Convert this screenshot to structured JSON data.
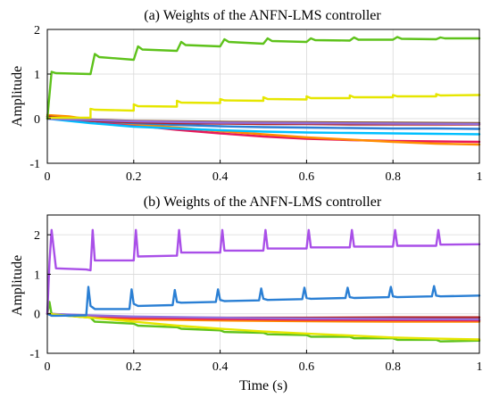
{
  "chart_data": [
    {
      "type": "line",
      "title": "(a) Weights of the ANFN-LMS controller",
      "ylabel": "Amplitude",
      "xlabel": "",
      "xlim": [
        0,
        1
      ],
      "ylim": [
        -1,
        2
      ],
      "xticks": [
        "0",
        "0.2",
        "0.4",
        "0.6",
        "0.8",
        "1"
      ],
      "yticks": [
        "2",
        "1",
        "0",
        "-1"
      ],
      "xtick_values": [
        0,
        0.2,
        0.4,
        0.6,
        0.8,
        1
      ],
      "ytick_values": [
        2,
        1,
        0,
        -1
      ],
      "grid": true,
      "series": [
        {
          "color": "#e8195a",
          "x": [
            0,
            0.05,
            0.1,
            0.2,
            0.3,
            0.4,
            0.5,
            0.6,
            0.7,
            0.8,
            0.9,
            1.0
          ],
          "y": [
            0.05,
            0.02,
            -0.05,
            -0.15,
            -0.25,
            -0.33,
            -0.4,
            -0.45,
            -0.48,
            -0.5,
            -0.51,
            -0.52
          ]
        },
        {
          "color": "#ff8c00",
          "x": [
            0,
            0.05,
            0.1,
            0.2,
            0.3,
            0.4,
            0.5,
            0.6,
            0.7,
            0.8,
            0.9,
            1.0
          ],
          "y": [
            0.08,
            0.05,
            -0.02,
            -0.12,
            -0.2,
            -0.28,
            -0.35,
            -0.42,
            -0.47,
            -0.52,
            -0.56,
            -0.58
          ]
        },
        {
          "color": "#00bfff",
          "x": [
            0,
            0.05,
            0.1,
            0.2,
            0.3,
            0.4,
            0.5,
            0.6,
            0.7,
            0.8,
            0.9,
            1.0
          ],
          "y": [
            0,
            -0.05,
            -0.1,
            -0.18,
            -0.22,
            -0.26,
            -0.29,
            -0.31,
            -0.32,
            -0.33,
            -0.34,
            -0.35
          ]
        },
        {
          "color": "#2a7fd4",
          "x": [
            0,
            0.05,
            0.1,
            0.2,
            0.3,
            0.4,
            0.5,
            0.6,
            0.7,
            0.8,
            0.9,
            1.0
          ],
          "y": [
            0,
            -0.02,
            -0.05,
            -0.1,
            -0.14,
            -0.17,
            -0.19,
            -0.2,
            -0.21,
            -0.22,
            -0.22,
            -0.23
          ]
        },
        {
          "color": "#b22222",
          "x": [
            0,
            0.05,
            0.1,
            0.2,
            0.3,
            0.4,
            0.5,
            0.6,
            0.7,
            0.8,
            0.9,
            1.0
          ],
          "y": [
            0.05,
            0,
            -0.05,
            -0.08,
            -0.1,
            -0.11,
            -0.12,
            -0.12,
            -0.13,
            -0.13,
            -0.13,
            -0.13
          ]
        },
        {
          "color": "#8b5a2b",
          "x": [
            0,
            0.1,
            0.2,
            0.4,
            0.6,
            0.8,
            1.0
          ],
          "y": [
            0.02,
            -0.02,
            -0.05,
            -0.07,
            -0.08,
            -0.09,
            -0.1
          ]
        },
        {
          "color": "#9370db",
          "x": [
            0,
            0.1,
            0.2,
            0.4,
            0.6,
            0.8,
            1.0
          ],
          "y": [
            0,
            -0.03,
            -0.06,
            -0.09,
            -0.1,
            -0.11,
            -0.12
          ]
        },
        {
          "color": "#e6e600",
          "x": [
            0,
            0.01,
            0.02,
            0.1,
            0.1,
            0.11,
            0.2,
            0.2,
            0.21,
            0.3,
            0.3,
            0.31,
            0.4,
            0.4,
            0.41,
            0.5,
            0.5,
            0.51,
            0.6,
            0.6,
            0.61,
            0.7,
            0.7,
            0.71,
            0.8,
            0.8,
            0.81,
            0.9,
            0.9,
            0.91,
            1.0
          ],
          "y": [
            0,
            0.02,
            0.02,
            0.02,
            0.22,
            0.2,
            0.18,
            0.32,
            0.28,
            0.27,
            0.4,
            0.36,
            0.35,
            0.44,
            0.41,
            0.4,
            0.48,
            0.44,
            0.43,
            0.5,
            0.46,
            0.46,
            0.52,
            0.48,
            0.48,
            0.53,
            0.5,
            0.5,
            0.55,
            0.52,
            0.53
          ]
        },
        {
          "color": "#5ec21b",
          "x": [
            0,
            0.01,
            0.02,
            0.1,
            0.11,
            0.12,
            0.2,
            0.21,
            0.22,
            0.3,
            0.31,
            0.32,
            0.4,
            0.41,
            0.42,
            0.5,
            0.51,
            0.52,
            0.6,
            0.61,
            0.62,
            0.7,
            0.71,
            0.72,
            0.8,
            0.81,
            0.82,
            0.9,
            0.91,
            0.92,
            1.0
          ],
          "y": [
            0,
            1.05,
            1.02,
            1.0,
            1.45,
            1.38,
            1.32,
            1.62,
            1.55,
            1.52,
            1.72,
            1.65,
            1.62,
            1.78,
            1.72,
            1.68,
            1.8,
            1.74,
            1.72,
            1.8,
            1.76,
            1.75,
            1.82,
            1.77,
            1.77,
            1.83,
            1.79,
            1.78,
            1.82,
            1.8,
            1.8
          ]
        }
      ]
    },
    {
      "type": "line",
      "title": "(b) Weights of the ANFN-LMS controller",
      "ylabel": "Amplitude",
      "xlabel": "Time (s)",
      "xlim": [
        0,
        1
      ],
      "ylim": [
        -1,
        2.5
      ],
      "xticks": [
        "0",
        "0.2",
        "0.4",
        "0.6",
        "0.8",
        "1"
      ],
      "yticks": [
        "2",
        "1",
        "0",
        "-1"
      ],
      "xtick_values": [
        0,
        0.2,
        0.4,
        0.6,
        0.8,
        1
      ],
      "ytick_values": [
        2,
        1,
        0,
        -1
      ],
      "grid": true,
      "series": [
        {
          "color": "#b22222",
          "x": [
            0,
            0.1,
            0.2,
            0.4,
            0.6,
            0.8,
            1.0
          ],
          "y": [
            0,
            -0.08,
            -0.1,
            -0.1,
            -0.1,
            -0.09,
            -0.09
          ]
        },
        {
          "color": "#ff8c00",
          "x": [
            0,
            0.1,
            0.2,
            0.4,
            0.6,
            0.8,
            1.0
          ],
          "y": [
            0,
            -0.1,
            -0.14,
            -0.17,
            -0.19,
            -0.2,
            -0.2
          ]
        },
        {
          "color": "#8b5a2b",
          "x": [
            0,
            0.1,
            0.2,
            0.4,
            0.6,
            0.8,
            1.0
          ],
          "y": [
            0,
            -0.05,
            -0.08,
            -0.12,
            -0.14,
            -0.15,
            -0.16
          ]
        },
        {
          "color": "#e8195a",
          "x": [
            0,
            0.1,
            0.2,
            0.4,
            0.6,
            0.8,
            1.0
          ],
          "y": [
            0,
            -0.06,
            -0.1,
            -0.13,
            -0.15,
            -0.16,
            -0.17
          ]
        },
        {
          "color": "#9370db",
          "x": [
            0,
            0.1,
            0.2,
            0.4,
            0.6,
            0.8,
            1.0
          ],
          "y": [
            0,
            -0.04,
            -0.07,
            -0.1,
            -0.12,
            -0.13,
            -0.14
          ]
        },
        {
          "color": "#5ec21b",
          "x": [
            0,
            0.005,
            0.01,
            0.1,
            0.11,
            0.2,
            0.21,
            0.3,
            0.31,
            0.4,
            0.41,
            0.5,
            0.51,
            0.6,
            0.61,
            0.7,
            0.71,
            0.8,
            0.81,
            0.9,
            0.91,
            1.0
          ],
          "y": [
            0,
            0.3,
            -0.02,
            -0.1,
            -0.2,
            -0.25,
            -0.3,
            -0.34,
            -0.38,
            -0.42,
            -0.46,
            -0.48,
            -0.52,
            -0.54,
            -0.58,
            -0.58,
            -0.62,
            -0.62,
            -0.66,
            -0.66,
            -0.7,
            -0.68
          ]
        },
        {
          "color": "#e6e600",
          "x": [
            0,
            0.05,
            0.1,
            0.2,
            0.3,
            0.4,
            0.5,
            0.6,
            0.7,
            0.8,
            0.9,
            1.0
          ],
          "y": [
            0,
            -0.05,
            -0.1,
            -0.2,
            -0.3,
            -0.38,
            -0.45,
            -0.5,
            -0.55,
            -0.6,
            -0.63,
            -0.65
          ]
        },
        {
          "color": "#2a7fd4",
          "x": [
            0,
            0.01,
            0.02,
            0.09,
            0.095,
            0.1,
            0.11,
            0.19,
            0.195,
            0.2,
            0.21,
            0.29,
            0.295,
            0.3,
            0.31,
            0.39,
            0.395,
            0.4,
            0.41,
            0.49,
            0.495,
            0.5,
            0.51,
            0.59,
            0.595,
            0.6,
            0.61,
            0.69,
            0.695,
            0.7,
            0.71,
            0.79,
            0.795,
            0.8,
            0.81,
            0.89,
            0.895,
            0.9,
            0.91,
            1.0
          ],
          "y": [
            0,
            -0.05,
            -0.05,
            -0.04,
            0.68,
            0.2,
            0.12,
            0.12,
            0.62,
            0.25,
            0.2,
            0.22,
            0.6,
            0.3,
            0.28,
            0.3,
            0.62,
            0.35,
            0.32,
            0.34,
            0.64,
            0.38,
            0.35,
            0.37,
            0.66,
            0.4,
            0.38,
            0.4,
            0.66,
            0.42,
            0.4,
            0.42,
            0.68,
            0.44,
            0.42,
            0.44,
            0.7,
            0.46,
            0.44,
            0.46
          ]
        },
        {
          "color": "#a94fe8",
          "x": [
            0,
            0.005,
            0.01,
            0.02,
            0.09,
            0.1,
            0.105,
            0.11,
            0.2,
            0.205,
            0.21,
            0.3,
            0.305,
            0.31,
            0.4,
            0.405,
            0.41,
            0.5,
            0.505,
            0.51,
            0.6,
            0.605,
            0.61,
            0.7,
            0.705,
            0.71,
            0.8,
            0.805,
            0.81,
            0.9,
            0.905,
            0.91,
            1.0
          ],
          "y": [
            0,
            1.3,
            2.12,
            1.15,
            1.12,
            1.1,
            2.12,
            1.35,
            1.35,
            2.12,
            1.45,
            1.47,
            2.12,
            1.55,
            1.55,
            2.12,
            1.6,
            1.6,
            2.12,
            1.65,
            1.65,
            2.12,
            1.68,
            1.68,
            2.12,
            1.7,
            1.7,
            2.12,
            1.72,
            1.72,
            2.12,
            1.75,
            1.76
          ]
        }
      ]
    }
  ]
}
